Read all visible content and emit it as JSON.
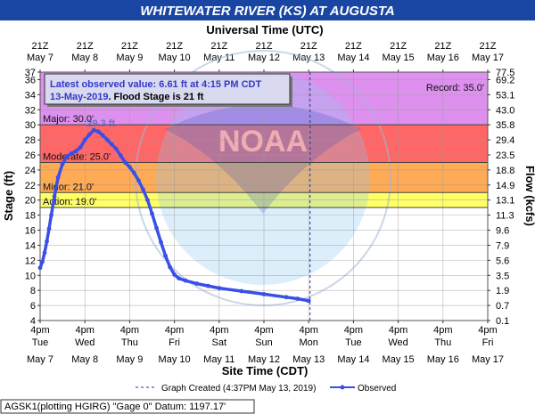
{
  "title": "WHITEWATER RIVER (KS) AT AUGUSTA",
  "utc_axis_title": "Universal Time (UTC)",
  "site_axis_title": "Site Time (CDT)",
  "stage_axis_title": "Stage (ft)",
  "flow_axis_title": "Flow (kcfs)",
  "latest_line1": "Latest observed value: 6.61 ft at 4:15 PM CDT",
  "latest_date": "13-May-2019",
  "latest_flood": ". Flood Stage is 21 ft",
  "record_label": "Record: 35.0'",
  "crest_label": "29.3 ft",
  "legend_created": "Graph Created (4:37PM May 13, 2019)",
  "legend_observed": "Observed",
  "footer": "AGSK1(plotting HGIRG) \"Gage 0\" Datum: 1197.17'",
  "colors": {
    "title_bg": "#1a46a3",
    "major": "#dd90ee",
    "moderate": "#ff6666",
    "minor": "#ffaa55",
    "action": "#ffff66",
    "series": "#3a4fe8",
    "created_line": "#2233aa"
  },
  "chart_data": {
    "type": "line",
    "utc_ticks": [
      {
        "hour": "21Z",
        "day": "May 7"
      },
      {
        "hour": "21Z",
        "day": "May 8"
      },
      {
        "hour": "21Z",
        "day": "May 9"
      },
      {
        "hour": "21Z",
        "day": "May 10"
      },
      {
        "hour": "21Z",
        "day": "May 11"
      },
      {
        "hour": "21Z",
        "day": "May 12"
      },
      {
        "hour": "21Z",
        "day": "May 13"
      },
      {
        "hour": "21Z",
        "day": "May 14"
      },
      {
        "hour": "21Z",
        "day": "May 15"
      },
      {
        "hour": "21Z",
        "day": "May 16"
      },
      {
        "hour": "21Z",
        "day": "May 17"
      }
    ],
    "site_ticks": [
      {
        "time": "4pm",
        "dow": "Tue",
        "day": "May 7"
      },
      {
        "time": "4pm",
        "dow": "Wed",
        "day": "May 8"
      },
      {
        "time": "4pm",
        "dow": "Thu",
        "day": "May 9"
      },
      {
        "time": "4pm",
        "dow": "Fri",
        "day": "May 10"
      },
      {
        "time": "4pm",
        "dow": "Sat",
        "day": "May 11"
      },
      {
        "time": "4pm",
        "dow": "Sun",
        "day": "May 12"
      },
      {
        "time": "4pm",
        "dow": "Mon",
        "day": "May 13"
      },
      {
        "time": "4pm",
        "dow": "Tue",
        "day": "May 14"
      },
      {
        "time": "4pm",
        "dow": "Wed",
        "day": "May 15"
      },
      {
        "time": "4pm",
        "dow": "Thu",
        "day": "May 16"
      },
      {
        "time": "4pm",
        "dow": "Fri",
        "day": "May 17"
      }
    ],
    "y_stage_range": [
      4,
      37
    ],
    "y_stage_ticks": [
      4,
      6,
      8,
      10,
      12,
      14,
      16,
      18,
      20,
      22,
      24,
      26,
      28,
      30,
      32,
      34,
      36,
      37
    ],
    "y_flow_ticks": [
      {
        "stage": 4,
        "label": "0.1"
      },
      {
        "stage": 6,
        "label": "0.7"
      },
      {
        "stage": 8,
        "label": "1.9"
      },
      {
        "stage": 10,
        "label": "3.5"
      },
      {
        "stage": 12,
        "label": "5.6"
      },
      {
        "stage": 14,
        "label": "7.9"
      },
      {
        "stage": 16,
        "label": "9.6"
      },
      {
        "stage": 18,
        "label": "11.3"
      },
      {
        "stage": 20,
        "label": "13.1"
      },
      {
        "stage": 22,
        "label": "14.9"
      },
      {
        "stage": 24,
        "label": "18.8"
      },
      {
        "stage": 26,
        "label": "23.5"
      },
      {
        "stage": 28,
        "label": "29.4"
      },
      {
        "stage": 30,
        "label": "35.8"
      },
      {
        "stage": 32,
        "label": "43.0"
      },
      {
        "stage": 34,
        "label": "53.1"
      },
      {
        "stage": 36,
        "label": "69.2"
      },
      {
        "stage": 37,
        "label": "77.5"
      }
    ],
    "flood_categories": [
      {
        "name": "Major",
        "label": "Major: 30.0'",
        "stage": 30.0,
        "color": "major"
      },
      {
        "name": "Moderate",
        "label": "Moderate: 25.0'",
        "stage": 25.0,
        "color": "moderate"
      },
      {
        "name": "Minor",
        "label": "Minor: 21.0'",
        "stage": 21.0,
        "color": "minor"
      },
      {
        "name": "Action",
        "label": "Action: 19.0'",
        "stage": 19.0,
        "color": "action"
      }
    ],
    "record_stage": 35.0,
    "created_day": 6.03,
    "series": [
      {
        "name": "Observed",
        "points": [
          [
            0.0,
            11.0
          ],
          [
            0.05,
            11.8
          ],
          [
            0.1,
            13.0
          ],
          [
            0.15,
            14.5
          ],
          [
            0.2,
            16.2
          ],
          [
            0.25,
            18.0
          ],
          [
            0.32,
            20.5
          ],
          [
            0.4,
            23.0
          ],
          [
            0.5,
            24.8
          ],
          [
            0.6,
            25.8
          ],
          [
            0.7,
            26.2
          ],
          [
            0.8,
            26.5
          ],
          [
            0.9,
            27.0
          ],
          [
            1.0,
            28.0
          ],
          [
            1.1,
            28.7
          ],
          [
            1.2,
            29.3
          ],
          [
            1.3,
            29.1
          ],
          [
            1.4,
            28.6
          ],
          [
            1.5,
            28.0
          ],
          [
            1.6,
            27.4
          ],
          [
            1.7,
            26.8
          ],
          [
            1.8,
            25.9
          ],
          [
            1.9,
            25.0
          ],
          [
            2.0,
            24.4
          ],
          [
            2.1,
            23.6
          ],
          [
            2.2,
            22.6
          ],
          [
            2.3,
            21.4
          ],
          [
            2.4,
            20.0
          ],
          [
            2.5,
            18.2
          ],
          [
            2.6,
            16.3
          ],
          [
            2.7,
            14.4
          ],
          [
            2.8,
            12.6
          ],
          [
            2.9,
            11.1
          ],
          [
            3.0,
            10.1
          ],
          [
            3.1,
            9.6
          ],
          [
            3.25,
            9.3
          ],
          [
            3.5,
            8.9
          ],
          [
            3.75,
            8.6
          ],
          [
            4.0,
            8.3
          ],
          [
            4.5,
            7.9
          ],
          [
            5.0,
            7.5
          ],
          [
            5.5,
            7.1
          ],
          [
            5.75,
            6.9
          ],
          [
            6.0,
            6.61
          ]
        ]
      }
    ]
  }
}
